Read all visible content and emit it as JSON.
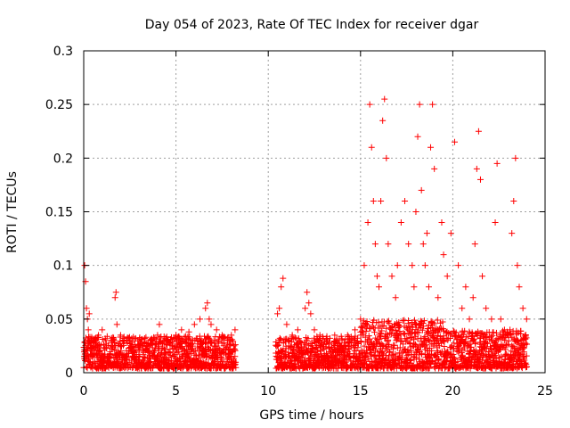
{
  "chart_data": {
    "type": "scatter",
    "title": "Day 054 of 2023, Rate Of TEC Index for receiver dgar",
    "xlabel": "GPS time / hours",
    "ylabel": "ROTI / TECUs",
    "xlim": [
      0,
      25
    ],
    "ylim": [
      0,
      0.3
    ],
    "xticks": [
      "0",
      "5",
      "10",
      "15",
      "20",
      "25"
    ],
    "yticks": [
      "0",
      "0.05",
      "0.1",
      "0.15",
      "0.2",
      "0.25",
      "0.3"
    ],
    "grid": true,
    "marker": "+",
    "marker_color": "#ff0000",
    "data_gap": [
      8.25,
      10.4
    ],
    "series": [
      {
        "x": [
          0.05,
          0.1,
          0.15,
          0.2,
          0.25,
          0.3,
          0.4,
          0.5,
          0.6,
          0.8,
          1.0,
          1.2,
          1.5,
          1.7,
          1.75,
          1.8,
          2.0,
          2.3,
          2.6,
          3.0,
          3.3,
          3.6,
          4.0,
          4.1,
          4.3,
          4.6,
          5.0,
          5.3,
          5.7,
          6.0,
          6.3,
          6.6,
          6.7,
          6.8,
          6.9,
          7.2,
          7.5,
          7.8,
          8.0,
          8.2,
          10.5,
          10.6,
          10.7,
          10.8,
          11.0,
          11.3,
          11.6,
          12.0,
          12.1,
          12.2,
          12.3,
          12.5,
          12.8,
          13.2,
          13.6,
          14.0,
          14.3,
          14.7,
          15.0,
          15.2,
          15.4,
          15.5,
          15.6,
          15.7,
          15.8,
          15.9,
          16.0,
          16.1,
          16.2,
          16.3,
          16.4,
          16.5,
          16.7,
          16.9,
          17.0,
          17.2,
          17.4,
          17.6,
          17.8,
          17.9,
          18.0,
          18.1,
          18.2,
          18.3,
          18.4,
          18.5,
          18.6,
          18.7,
          18.8,
          18.9,
          19.0,
          19.2,
          19.4,
          19.5,
          19.7,
          19.9,
          20.1,
          20.3,
          20.5,
          20.7,
          20.9,
          21.1,
          21.2,
          21.3,
          21.4,
          21.5,
          21.6,
          21.8,
          22.1,
          22.3,
          22.4,
          22.6,
          22.8,
          23.0,
          23.1,
          23.2,
          23.3,
          23.4,
          23.5,
          23.6,
          23.8,
          24.0
        ],
        "y": [
          0.1,
          0.085,
          0.06,
          0.05,
          0.04,
          0.055,
          0.03,
          0.025,
          0.03,
          0.035,
          0.04,
          0.03,
          0.028,
          0.07,
          0.075,
          0.045,
          0.035,
          0.03,
          0.028,
          0.025,
          0.032,
          0.03,
          0.035,
          0.045,
          0.03,
          0.028,
          0.035,
          0.04,
          0.038,
          0.045,
          0.05,
          0.06,
          0.065,
          0.05,
          0.045,
          0.04,
          0.035,
          0.03,
          0.035,
          0.04,
          0.055,
          0.06,
          0.08,
          0.088,
          0.045,
          0.035,
          0.04,
          0.06,
          0.075,
          0.065,
          0.055,
          0.04,
          0.035,
          0.03,
          0.035,
          0.03,
          0.035,
          0.04,
          0.05,
          0.1,
          0.14,
          0.25,
          0.21,
          0.16,
          0.12,
          0.09,
          0.08,
          0.16,
          0.235,
          0.255,
          0.2,
          0.12,
          0.09,
          0.07,
          0.1,
          0.14,
          0.16,
          0.12,
          0.1,
          0.08,
          0.15,
          0.22,
          0.25,
          0.17,
          0.12,
          0.1,
          0.13,
          0.08,
          0.21,
          0.25,
          0.19,
          0.07,
          0.14,
          0.11,
          0.09,
          0.13,
          0.215,
          0.1,
          0.06,
          0.08,
          0.05,
          0.07,
          0.12,
          0.19,
          0.225,
          0.18,
          0.09,
          0.06,
          0.05,
          0.14,
          0.195,
          0.05,
          0.04,
          0.035,
          0.04,
          0.13,
          0.16,
          0.2,
          0.1,
          0.08,
          0.06,
          0.05
        ]
      }
    ]
  }
}
